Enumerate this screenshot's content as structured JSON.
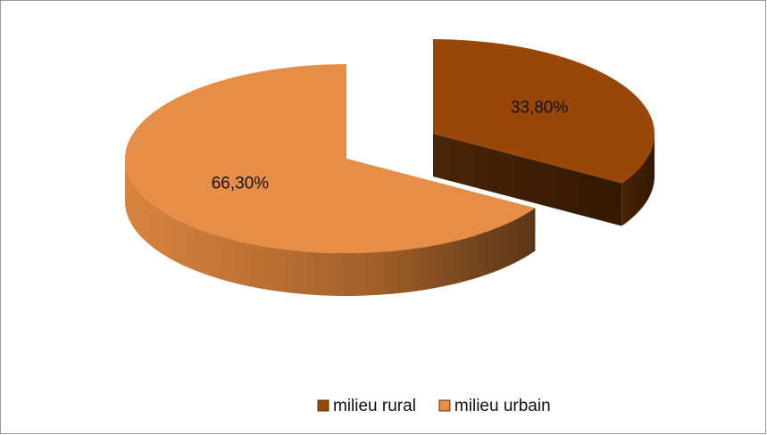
{
  "chart_data": {
    "type": "pie",
    "categories": [
      "milieu rural",
      "milieu urbain"
    ],
    "values": [
      33.8,
      66.3
    ],
    "value_labels": [
      "33,80%",
      "66,30%"
    ],
    "colors": [
      "#984709",
      "#e68e47"
    ],
    "legend": "bottom"
  }
}
